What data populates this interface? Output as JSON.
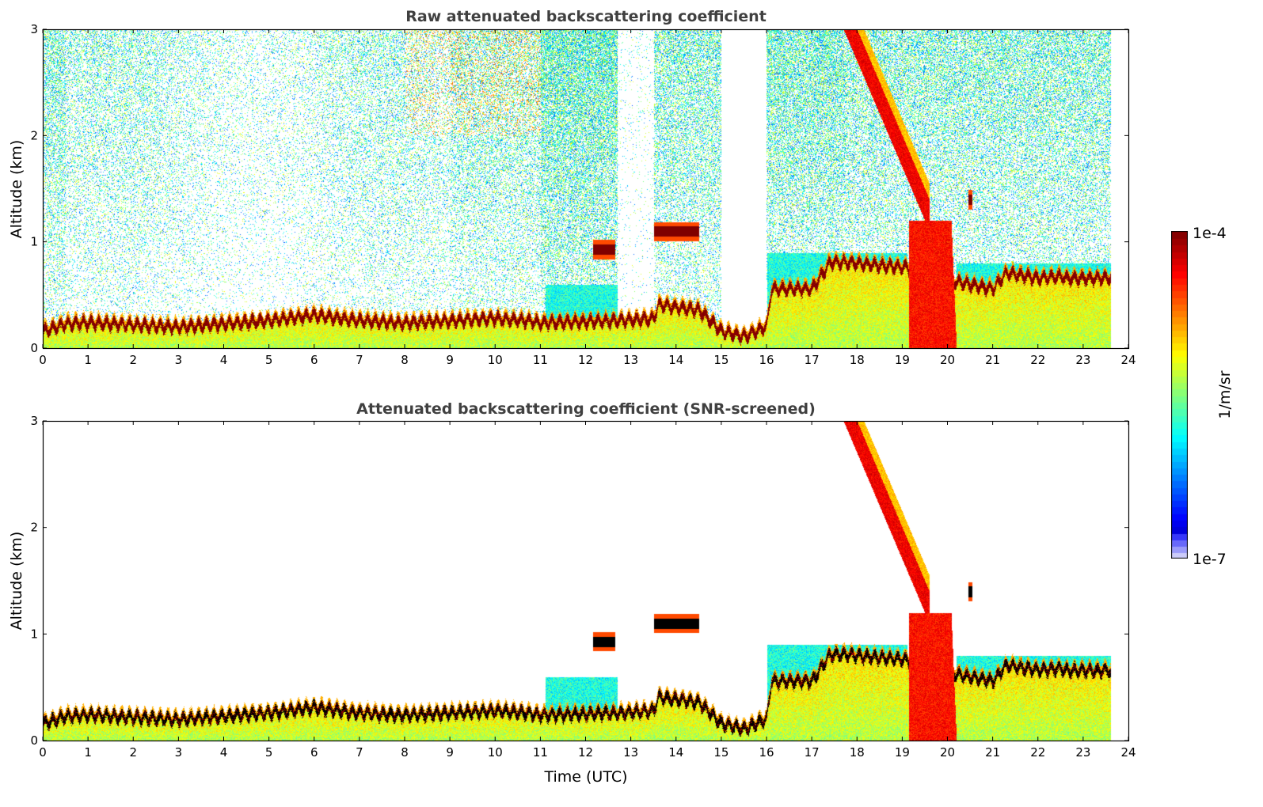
{
  "chart_data": [
    {
      "type": "heatmap",
      "title": "Raw attenuated backscattering coefficient",
      "xlabel": "",
      "ylabel": "Altitude (km)",
      "xlim": [
        0,
        24
      ],
      "ylim": [
        0,
        3
      ],
      "xticks": [
        "0",
        "1",
        "2",
        "3",
        "4",
        "5",
        "6",
        "7",
        "8",
        "9",
        "10",
        "11",
        "12",
        "13",
        "14",
        "15",
        "16",
        "17",
        "18",
        "19",
        "20",
        "21",
        "22",
        "23",
        "24"
      ],
      "yticks": [
        "0",
        "1",
        "2",
        "3"
      ],
      "screened": false
    },
    {
      "type": "heatmap",
      "title": "Attenuated backscattering coefficient (SNR-screened)",
      "xlabel": "Time (UTC)",
      "ylabel": "Altitude (km)",
      "xlim": [
        0,
        24
      ],
      "ylim": [
        0,
        3
      ],
      "xticks": [
        "0",
        "1",
        "2",
        "3",
        "4",
        "5",
        "6",
        "7",
        "8",
        "9",
        "10",
        "11",
        "12",
        "13",
        "14",
        "15",
        "16",
        "17",
        "18",
        "19",
        "20",
        "21",
        "22",
        "23",
        "24"
      ],
      "yticks": [
        "0",
        "1",
        "2",
        "3"
      ],
      "screened": true
    }
  ],
  "colorbar": {
    "label": "1/m/sr",
    "min_label": "1e-7",
    "max_label": "1e-4",
    "log_range": [
      -7,
      -4
    ],
    "colormap": "jet"
  },
  "scene": {
    "data_end_hour": 23.6,
    "boundary_layer_top_km": [
      [
        0,
        0.2
      ],
      [
        0.5,
        0.27
      ],
      [
        1,
        0.28
      ],
      [
        3,
        0.24
      ],
      [
        5,
        0.3
      ],
      [
        6,
        0.35
      ],
      [
        7,
        0.3
      ],
      [
        8,
        0.28
      ],
      [
        10,
        0.32
      ],
      [
        10.7,
        0.3
      ],
      [
        11,
        0.28
      ],
      [
        12.7,
        0.3
      ],
      [
        13.5,
        0.32
      ],
      [
        13.6,
        0.45
      ],
      [
        14.5,
        0.4
      ],
      [
        15,
        0.2
      ],
      [
        15.5,
        0.15
      ],
      [
        16,
        0.25
      ],
      [
        16.1,
        0.6
      ],
      [
        17,
        0.6
      ],
      [
        17.4,
        0.85
      ],
      [
        17.7,
        0.85
      ],
      [
        19.1,
        0.8
      ],
      [
        20,
        0.68
      ],
      [
        21,
        0.6
      ],
      [
        21.3,
        0.75
      ],
      [
        22,
        0.7
      ],
      [
        22.5,
        0.72
      ],
      [
        22.6,
        0.7
      ],
      [
        23.6,
        0.7
      ]
    ],
    "clouds": [
      {
        "start": 12.15,
        "end": 12.65,
        "alt_km": 0.93
      },
      {
        "start": 13.5,
        "end": 14.5,
        "alt_km": 1.1
      },
      {
        "start": 20.45,
        "end": 20.55,
        "alt_km": 1.4
      }
    ],
    "precipitation": {
      "start": 17.7,
      "top_alt_km": 3,
      "slope_km_per_h": 1.0,
      "ground_start": 19.15,
      "ground_end": 20.2
    }
  }
}
